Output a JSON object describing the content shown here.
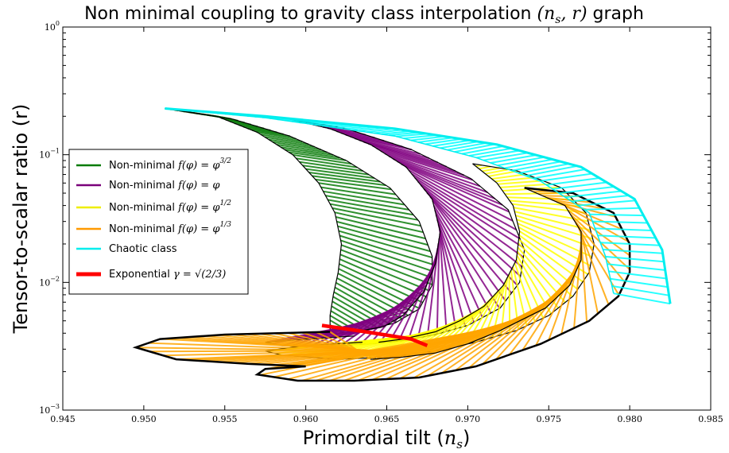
{
  "chart_data": {
    "type": "line",
    "title": "Non minimal coupling to gravity class interpolation (n_s, r) graph",
    "title_parts": {
      "main": "Non minimal coupling to gravity class interpolation ",
      "math": "(n",
      "math_sub": "s",
      "math_end": ", r)",
      "tail": " graph"
    },
    "xlabel": "Primordial tilt (n_s)",
    "xlabel_parts": {
      "main": "Primordial tilt (",
      "math": "n",
      "math_sub": "s",
      "end": ")"
    },
    "ylabel": "Tensor-to-scalar ratio (r)",
    "xlim": [
      0.945,
      0.985
    ],
    "ylim": [
      0.001,
      1
    ],
    "yscale": "log",
    "grid": false,
    "legend_position": "upper-left",
    "x_ticks": [
      "0.945",
      "0.950",
      "0.955",
      "0.960",
      "0.965",
      "0.970",
      "0.975",
      "0.980",
      "0.985"
    ],
    "x_tick_values": [
      0.945,
      0.95,
      0.955,
      0.96,
      0.965,
      0.97,
      0.975,
      0.98,
      0.985
    ],
    "y_tick_values": [
      0.001,
      0.01,
      0.1,
      1
    ],
    "y_ticks": [
      {
        "base": "10",
        "exp": "−3"
      },
      {
        "base": "10",
        "exp": "−2"
      },
      {
        "base": "10",
        "exp": "−1"
      },
      {
        "base": "10",
        "exp": "0"
      }
    ],
    "series": [
      {
        "name": "Non-minimal f(φ) = φ^(3/2)",
        "legend": {
          "text": "Non-minimal ",
          "math": "f(φ) = φ",
          "sup": "3/2"
        },
        "color": "#007a00",
        "fill": "#0a7d0a",
        "outer": [
          [
            0.9513,
            0.23
          ],
          [
            0.9555,
            0.19
          ],
          [
            0.959,
            0.14
          ],
          [
            0.9625,
            0.09
          ],
          [
            0.9652,
            0.055
          ],
          [
            0.967,
            0.03
          ],
          [
            0.9678,
            0.016
          ],
          [
            0.9678,
            0.0095
          ],
          [
            0.967,
            0.0062
          ],
          [
            0.9655,
            0.0048
          ],
          [
            0.9635,
            0.0042
          ],
          [
            0.9615,
            0.0039
          ]
        ],
        "inner": [
          [
            0.9513,
            0.23
          ],
          [
            0.9545,
            0.2
          ],
          [
            0.957,
            0.15
          ],
          [
            0.9592,
            0.1
          ],
          [
            0.9608,
            0.06
          ],
          [
            0.9618,
            0.035
          ],
          [
            0.9622,
            0.02
          ],
          [
            0.962,
            0.012
          ],
          [
            0.9617,
            0.008
          ],
          [
            0.9615,
            0.0055
          ],
          [
            0.9615,
            0.0039
          ]
        ]
      },
      {
        "name": "Non-minimal f(φ) = φ",
        "legend": {
          "text": "Non-minimal ",
          "math": "f(φ) = φ",
          "sup": ""
        },
        "color": "#7a007a",
        "fill": "#800080",
        "outer": [
          [
            0.959,
            0.19
          ],
          [
            0.9625,
            0.16
          ],
          [
            0.9665,
            0.11
          ],
          [
            0.9702,
            0.065
          ],
          [
            0.9725,
            0.037
          ],
          [
            0.9735,
            0.018
          ],
          [
            0.9732,
            0.01
          ],
          [
            0.972,
            0.0063
          ],
          [
            0.97,
            0.0046
          ],
          [
            0.968,
            0.0039
          ],
          [
            0.966,
            0.0035
          ],
          [
            0.964,
            0.0033
          ],
          [
            0.962,
            0.0032
          ],
          [
            0.9585,
            0.0032
          ],
          [
            0.9575,
            0.0034
          ],
          [
            0.96,
            0.0036
          ],
          [
            0.963,
            0.0038
          ]
        ],
        "inner": [
          [
            0.959,
            0.19
          ],
          [
            0.9615,
            0.16
          ],
          [
            0.964,
            0.12
          ],
          [
            0.9662,
            0.08
          ],
          [
            0.9678,
            0.045
          ],
          [
            0.9683,
            0.025
          ],
          [
            0.968,
            0.014
          ],
          [
            0.9673,
            0.0085
          ],
          [
            0.966,
            0.0055
          ],
          [
            0.9648,
            0.0045
          ],
          [
            0.9635,
            0.0042
          ]
        ]
      },
      {
        "name": "Non-minimal f(φ) = φ^(1/2)",
        "legend": {
          "text": "Non-minimal ",
          "math": "f(φ) = φ",
          "sup": "1/2"
        },
        "color": "#eeee00",
        "fill": "#ffff00",
        "outer": [
          [
            0.9703,
            0.085
          ],
          [
            0.973,
            0.075
          ],
          [
            0.9758,
            0.055
          ],
          [
            0.9773,
            0.035
          ],
          [
            0.9778,
            0.02
          ],
          [
            0.9775,
            0.012
          ],
          [
            0.9765,
            0.0078
          ],
          [
            0.975,
            0.0055
          ],
          [
            0.973,
            0.0042
          ],
          [
            0.9705,
            0.0034
          ],
          [
            0.968,
            0.0029
          ],
          [
            0.965,
            0.0026
          ],
          [
            0.962,
            0.0025
          ],
          [
            0.9585,
            0.0027
          ],
          [
            0.9575,
            0.0029
          ],
          [
            0.96,
            0.0032
          ],
          [
            0.9635,
            0.0034
          ]
        ],
        "inner": [
          [
            0.9703,
            0.085
          ],
          [
            0.9718,
            0.06
          ],
          [
            0.9728,
            0.04
          ],
          [
            0.9732,
            0.025
          ],
          [
            0.973,
            0.015
          ],
          [
            0.9722,
            0.0095
          ],
          [
            0.971,
            0.0065
          ],
          [
            0.9695,
            0.005
          ],
          [
            0.968,
            0.0041
          ],
          [
            0.966,
            0.0036
          ],
          [
            0.9645,
            0.0034
          ]
        ]
      },
      {
        "name": "Non-minimal f(φ) = φ^(1/3)",
        "legend": {
          "text": "Non-minimal ",
          "math": "f(φ) = φ",
          "sup": "1/3"
        },
        "color": "#ff9900",
        "fill": "#ffa500",
        "outer": [
          [
            0.9735,
            0.055
          ],
          [
            0.9765,
            0.05
          ],
          [
            0.979,
            0.035
          ],
          [
            0.98,
            0.02
          ],
          [
            0.98,
            0.012
          ],
          [
            0.9793,
            0.0078
          ],
          [
            0.9775,
            0.005
          ],
          [
            0.9745,
            0.0033
          ],
          [
            0.9705,
            0.0022
          ],
          [
            0.967,
            0.0018
          ],
          [
            0.963,
            0.0017
          ],
          [
            0.9595,
            0.0017
          ],
          [
            0.957,
            0.0019
          ],
          [
            0.9575,
            0.0021
          ],
          [
            0.96,
            0.0022
          ],
          [
            0.9565,
            0.0023
          ],
          [
            0.952,
            0.0025
          ],
          [
            0.9495,
            0.0031
          ],
          [
            0.951,
            0.0036
          ],
          [
            0.955,
            0.0039
          ],
          [
            0.9615,
            0.0041
          ]
        ],
        "inner": [
          [
            0.9735,
            0.055
          ],
          [
            0.976,
            0.04
          ],
          [
            0.977,
            0.025
          ],
          [
            0.977,
            0.015
          ],
          [
            0.9763,
            0.0095
          ],
          [
            0.9748,
            0.0063
          ],
          [
            0.972,
            0.0042
          ],
          [
            0.97,
            0.0033
          ],
          [
            0.968,
            0.0028
          ],
          [
            0.966,
            0.0026
          ],
          [
            0.964,
            0.0025
          ]
        ]
      },
      {
        "name": "Chaotic class",
        "legend": {
          "text": "Chaotic class",
          "math": "",
          "sup": ""
        },
        "color": "#00eeee",
        "fill": "#00ffff",
        "outer": [
          [
            0.9513,
            0.23
          ],
          [
            0.9575,
            0.2
          ],
          [
            0.9655,
            0.16
          ],
          [
            0.9718,
            0.12
          ],
          [
            0.977,
            0.08
          ],
          [
            0.9803,
            0.045
          ],
          [
            0.982,
            0.018
          ],
          [
            0.9825,
            0.0068
          ]
        ],
        "inner": [
          [
            0.9513,
            0.23
          ],
          [
            0.9575,
            0.195
          ],
          [
            0.9655,
            0.14
          ],
          [
            0.9705,
            0.095
          ],
          [
            0.9745,
            0.062
          ],
          [
            0.9775,
            0.035
          ],
          [
            0.9785,
            0.016
          ],
          [
            0.979,
            0.0082
          ]
        ]
      },
      {
        "name": "Exponential γ = √(2/3)",
        "legend": {
          "text": "Exponential ",
          "math": "γ = √(2/3)",
          "sup": ""
        },
        "color": "#ff0000",
        "line": [
          [
            0.961,
            0.0046
          ],
          [
            0.9637,
            0.0041
          ],
          [
            0.9665,
            0.0036
          ],
          [
            0.9675,
            0.0032
          ]
        ]
      }
    ]
  }
}
